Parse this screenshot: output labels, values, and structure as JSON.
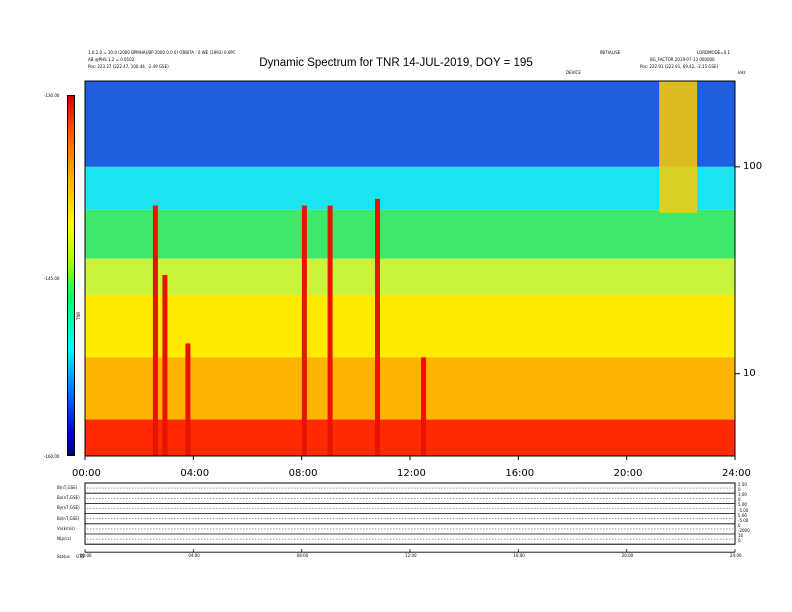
{
  "header": {
    "left_line1": "1.0.2.0 = 10:0 (2000 BPMHA)/BP 2000 0.0 0) ORBITA : 0.WE (1993) 0.0PC",
    "left_line2": "AB @PHS 1.2 = 0.0102",
    "left_line3": "Pos: 223.27 (222.47, 100.44, -2.49 GSE)",
    "right_line1a": "INITIALISE",
    "right_line1b": "LORDMODE=0.1",
    "right_line2": "BG_FACTOR 2019-07-13 000000",
    "right_line2b": "DEVICE",
    "right_line3": "Pos: 222.91 (222.91, 69.42, -2.15 GSE)"
  },
  "title": "Dynamic Spectrum for TNR 14-JUL-2019, DOY = 195",
  "colorbar": {
    "label": "TNR",
    "ticks": [
      "-130.00",
      "-145.00",
      "-160.00"
    ]
  },
  "right_axis": {
    "unit": "kHz"
  },
  "bottom_panel": {
    "row_labels": [
      "B(nT,GSE)",
      "Bx(nT,GSE)",
      "By(nT,GSE)",
      "Bz(nT,GSE)",
      "Vx(km/s)",
      "N(p/cc)"
    ],
    "right_ticks": [
      "2.50",
      "0",
      "3.00",
      "0",
      "5.00",
      "-5.00",
      "5.00",
      "-5.00",
      "0",
      "-2000",
      "10",
      "0"
    ],
    "x_ticks": [
      "00:00",
      "04:00",
      "08:00",
      "12:00",
      "16:00",
      "20:00",
      "24:00"
    ],
    "footer_label": "Status",
    "footer_value": "GTD"
  },
  "chart_data": {
    "type": "heatmap",
    "title": "Dynamic Spectrum for TNR 14-JUL-2019, DOY = 195",
    "x_unit": "hours UT",
    "x_ticks": [
      "00:00",
      "04:00",
      "08:00",
      "12:00",
      "16:00",
      "20:00",
      "24:00"
    ],
    "xlim": [
      0,
      24
    ],
    "y_scale": "log",
    "ylim": [
      4,
      260
    ],
    "y_ticks": [
      10,
      100
    ],
    "y_unit": "kHz",
    "color_label": "TNR",
    "color_range": [
      -160,
      -130
    ],
    "color_ticks": [
      -130,
      -145,
      -160
    ],
    "layers": [
      {
        "name": "blue",
        "fmin": 100,
        "fmax": 260,
        "color": "#1e5fe0"
      },
      {
        "name": "cyan",
        "fmin": 62,
        "fmax": 100,
        "color": "#19e4f0"
      },
      {
        "name": "green",
        "fmin": 36,
        "fmax": 62,
        "color": "#3ee86a"
      },
      {
        "name": "yellow-green",
        "fmin": 24,
        "fmax": 36,
        "color": "#c8f43c"
      },
      {
        "name": "yellow",
        "fmin": 12,
        "fmax": 24,
        "color": "#ffea00"
      },
      {
        "name": "orange",
        "fmin": 6,
        "fmax": 12,
        "color": "#ffb400"
      },
      {
        "name": "red",
        "fmin": 4,
        "fmax": 6,
        "color": "#ff2a00"
      }
    ],
    "bursts": [
      {
        "t": 2.6,
        "fmin": 4,
        "fmax": 65
      },
      {
        "t": 2.95,
        "fmin": 4,
        "fmax": 30
      },
      {
        "t": 3.8,
        "fmin": 4,
        "fmax": 14
      },
      {
        "t": 8.1,
        "fmin": 4,
        "fmax": 65
      },
      {
        "t": 9.05,
        "fmin": 4,
        "fmax": 65
      },
      {
        "t": 10.8,
        "fmin": 4,
        "fmax": 70
      },
      {
        "t": 12.5,
        "fmin": 4,
        "fmax": 12
      }
    ],
    "hf_activity": [
      {
        "t0": 21.2,
        "t1": 22.6,
        "fmin": 60,
        "fmax": 260
      }
    ]
  }
}
